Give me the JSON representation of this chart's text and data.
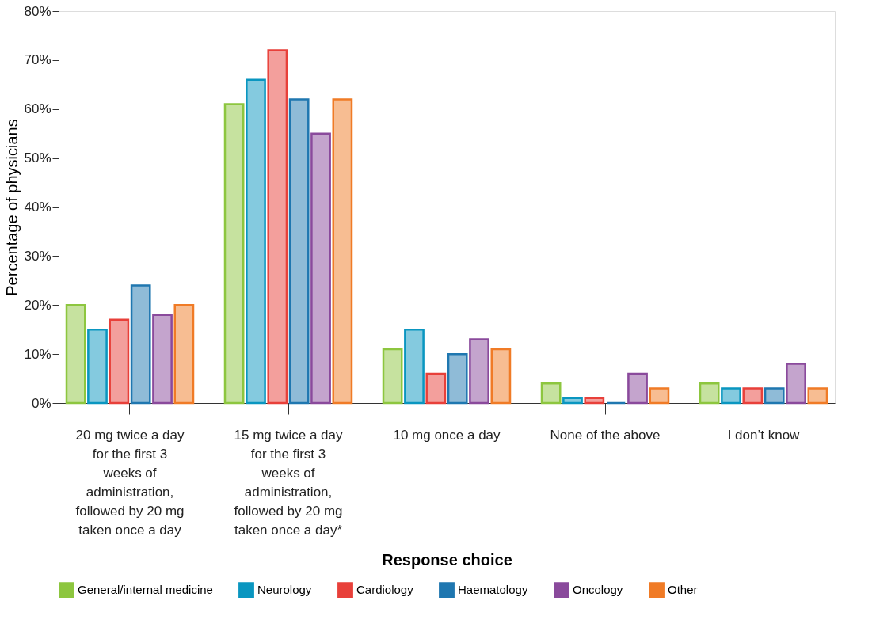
{
  "chart_data": {
    "type": "bar",
    "xlabel": "Response choice",
    "ylabel": "Percentage of physicians",
    "categories": [
      "20 mg twice a day for the first 3 weeks of administration, followed by 20 mg taken once a day",
      "15 mg twice a day for the first 3 weeks of administration, followed by 20 mg taken once a day*",
      "10 mg once a day",
      "None of the above",
      "I don’t know"
    ],
    "series": [
      {
        "name": "General/internal medicine",
        "color": "#8dc63f",
        "values": [
          20,
          61,
          11,
          4,
          4
        ]
      },
      {
        "name": "Neurology",
        "color": "#0a96c0",
        "values": [
          15,
          66,
          15,
          1,
          3
        ]
      },
      {
        "name": "Cardiology",
        "color": "#e8403a",
        "values": [
          17,
          72,
          6,
          1,
          3
        ]
      },
      {
        "name": "Haematology",
        "color": "#1f77b0",
        "values": [
          24,
          62,
          10,
          0,
          3
        ]
      },
      {
        "name": "Oncology",
        "color": "#8a4a9c",
        "values": [
          18,
          55,
          13,
          6,
          8
        ]
      },
      {
        "name": "Other",
        "color": "#f07b26",
        "values": [
          20,
          62,
          11,
          3,
          3
        ]
      }
    ],
    "ylim": [
      0,
      80
    ],
    "yticks": [
      {
        "value": 0,
        "label": "0%"
      },
      {
        "value": 10,
        "label": "10%"
      },
      {
        "value": 20,
        "label": "20%"
      },
      {
        "value": 30,
        "label": "30%"
      },
      {
        "value": 40,
        "label": "40%"
      },
      {
        "value": 50,
        "label": "50%"
      },
      {
        "value": 60,
        "label": "60%"
      },
      {
        "value": 70,
        "label": "70%"
      },
      {
        "value": 80,
        "label": "80%"
      }
    ],
    "grid": false,
    "legend": "bottom"
  }
}
